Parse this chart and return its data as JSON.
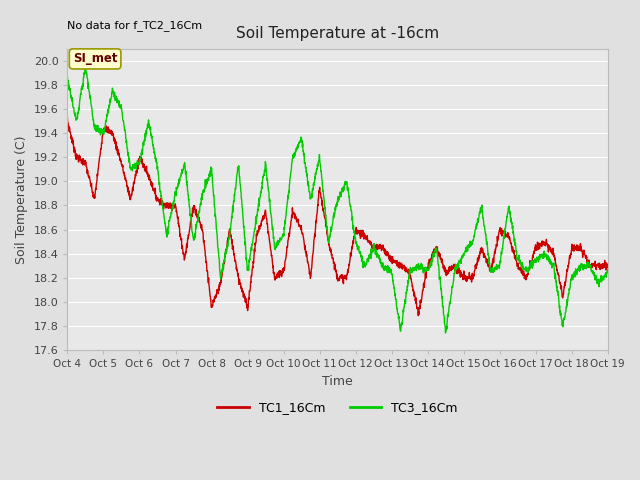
{
  "title": "Soil Temperature at -16cm",
  "xlabel": "Time",
  "ylabel": "Soil Temperature (C)",
  "top_left_text": "No data for f_TC2_16Cm",
  "annotation_box": "SI_met",
  "ylim": [
    17.6,
    20.1
  ],
  "xlim": [
    0,
    360
  ],
  "x_tick_labels": [
    "Oct 4",
    "Oct 5",
    "Oct 6",
    "Oct 7",
    "Oct 8",
    "Oct 9",
    "Oct 10",
    "Oct 11",
    "Oct 12",
    "Oct 13",
    "Oct 14",
    "Oct 15",
    "Oct 16",
    "Oct 17",
    "Oct 18",
    "Oct 19"
  ],
  "x_tick_positions": [
    0,
    24,
    48,
    72,
    96,
    120,
    144,
    168,
    192,
    216,
    240,
    264,
    288,
    312,
    336,
    360
  ],
  "y_ticks": [
    17.6,
    17.8,
    18.0,
    18.2,
    18.4,
    18.6,
    18.8,
    19.0,
    19.2,
    19.4,
    19.6,
    19.8,
    20.0
  ],
  "line1_color": "#cc0000",
  "line2_color": "#00cc00",
  "line1_label": "TC1_16Cm",
  "line2_label": "TC3_16Cm",
  "bg_color": "#e0e0e0",
  "plot_bg_color": "#e8e8e8",
  "grid_color": "#ffffff",
  "annotation_bg": "#ffffcc",
  "annotation_border": "#999900",
  "annotation_text_color": "#660000",
  "figsize": [
    6.4,
    4.8
  ],
  "dpi": 100
}
